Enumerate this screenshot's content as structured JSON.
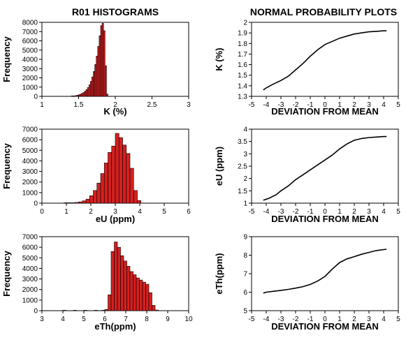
{
  "headers": {
    "left": "R01 HISTOGRAMS",
    "right": "NORMAL PROBABILITY PLOTS"
  },
  "colors": {
    "bar_fill": "#d42020",
    "bar_stroke": "#000000",
    "line": "#000000"
  },
  "chart_data": [
    {
      "id": "hist-k",
      "type": "bar",
      "xlabel": "K (%)",
      "ylabel": "Frequency",
      "xlim": [
        1,
        3
      ],
      "ylim": [
        0,
        8000
      ],
      "xticks": [
        "1",
        "1.5",
        "2",
        "2.5",
        "3"
      ],
      "yticks": [
        "0",
        "1000",
        "2000",
        "3000",
        "4000",
        "5000",
        "6000",
        "7000",
        "8000"
      ],
      "bin_width": 0.02,
      "bins": [
        [
          1.4,
          20
        ],
        [
          1.42,
          40
        ],
        [
          1.44,
          60
        ],
        [
          1.46,
          90
        ],
        [
          1.48,
          130
        ],
        [
          1.5,
          180
        ],
        [
          1.52,
          240
        ],
        [
          1.54,
          320
        ],
        [
          1.56,
          420
        ],
        [
          1.58,
          560
        ],
        [
          1.6,
          730
        ],
        [
          1.62,
          950
        ],
        [
          1.64,
          1250
        ],
        [
          1.66,
          1620
        ],
        [
          1.68,
          2100
        ],
        [
          1.7,
          2700
        ],
        [
          1.72,
          3450
        ],
        [
          1.74,
          4350
        ],
        [
          1.76,
          5400
        ],
        [
          1.78,
          6550
        ],
        [
          1.8,
          7650
        ],
        [
          1.82,
          7900
        ],
        [
          1.84,
          7100
        ],
        [
          1.86,
          3300
        ],
        [
          1.88,
          250
        ]
      ]
    },
    {
      "id": "npp-k",
      "type": "line",
      "xlabel": "DEVIATION FROM MEAN",
      "ylabel": "K (%)",
      "xlim": [
        -5,
        5
      ],
      "ylim": [
        1.3,
        2
      ],
      "xticks": [
        "-5",
        "-4",
        "-3",
        "-2",
        "-1",
        "0",
        "1",
        "2",
        "3",
        "4",
        "5"
      ],
      "yticks": [
        "1.3",
        "1.4",
        "1.5",
        "1.6",
        "1.7",
        "1.8",
        "1.9",
        "2"
      ],
      "points": [
        [
          -4.2,
          1.36
        ],
        [
          -4.0,
          1.38
        ],
        [
          -3.6,
          1.41
        ],
        [
          -3.0,
          1.45
        ],
        [
          -2.5,
          1.49
        ],
        [
          -2.0,
          1.55
        ],
        [
          -1.5,
          1.61
        ],
        [
          -1.0,
          1.68
        ],
        [
          -0.5,
          1.74
        ],
        [
          0.0,
          1.79
        ],
        [
          0.5,
          1.82
        ],
        [
          1.0,
          1.85
        ],
        [
          1.5,
          1.87
        ],
        [
          2.0,
          1.89
        ],
        [
          2.5,
          1.9
        ],
        [
          3.0,
          1.91
        ],
        [
          3.5,
          1.915
        ],
        [
          4.0,
          1.92
        ],
        [
          4.2,
          1.92
        ]
      ]
    },
    {
      "id": "hist-eu",
      "type": "bar",
      "xlabel": "eU (ppm)",
      "ylabel": "Frequency",
      "xlim": [
        0,
        6
      ],
      "ylim": [
        0,
        7000
      ],
      "xticks": [
        "0",
        "1",
        "2",
        "3",
        "4",
        "5",
        "6"
      ],
      "yticks": [
        "0",
        "1000",
        "2000",
        "3000",
        "4000",
        "5000",
        "6000",
        "7000"
      ],
      "bin_width": 0.15,
      "bins": [
        [
          0.9,
          10
        ],
        [
          1.05,
          20
        ],
        [
          1.2,
          40
        ],
        [
          1.35,
          70
        ],
        [
          1.5,
          120
        ],
        [
          1.65,
          220
        ],
        [
          1.8,
          380
        ],
        [
          1.95,
          700
        ],
        [
          2.1,
          1200
        ],
        [
          2.25,
          1900
        ],
        [
          2.4,
          2800
        ],
        [
          2.55,
          3800
        ],
        [
          2.7,
          4800
        ],
        [
          2.85,
          5400
        ],
        [
          3.0,
          6600
        ],
        [
          3.15,
          6200
        ],
        [
          3.3,
          5500
        ],
        [
          3.45,
          4700
        ],
        [
          3.6,
          3300
        ],
        [
          3.75,
          1200
        ],
        [
          3.9,
          250
        ]
      ]
    },
    {
      "id": "npp-eu",
      "type": "line",
      "xlabel": "DEVIATION FROM MEAN",
      "ylabel": "eU (ppm)",
      "xlim": [
        -5,
        5
      ],
      "ylim": [
        1,
        4
      ],
      "xticks": [
        "-5",
        "-4",
        "-3",
        "-2",
        "-1",
        "0",
        "1",
        "2",
        "3",
        "4",
        "5"
      ],
      "yticks": [
        "1",
        "1.5",
        "2",
        "2.5",
        "3",
        "3.5",
        "4"
      ],
      "points": [
        [
          -4.2,
          1.12
        ],
        [
          -3.8,
          1.2
        ],
        [
          -3.3,
          1.35
        ],
        [
          -3.0,
          1.5
        ],
        [
          -2.5,
          1.7
        ],
        [
          -2.0,
          1.95
        ],
        [
          -1.5,
          2.15
        ],
        [
          -1.0,
          2.35
        ],
        [
          -0.5,
          2.55
        ],
        [
          0.0,
          2.75
        ],
        [
          0.5,
          2.95
        ],
        [
          1.0,
          3.2
        ],
        [
          1.5,
          3.4
        ],
        [
          2.0,
          3.55
        ],
        [
          2.5,
          3.62
        ],
        [
          3.0,
          3.66
        ],
        [
          3.5,
          3.68
        ],
        [
          4.0,
          3.7
        ],
        [
          4.2,
          3.7
        ]
      ]
    },
    {
      "id": "hist-eth",
      "type": "bar",
      "xlabel": "eTh(ppm)",
      "ylabel": "Frequency",
      "xlim": [
        3,
        10
      ],
      "ylim": [
        0,
        7000
      ],
      "xticks": [
        "3",
        "4",
        "5",
        "6",
        "7",
        "8",
        "9",
        "10"
      ],
      "yticks": [
        "0",
        "1000",
        "2000",
        "3000",
        "4000",
        "5000",
        "6000",
        "7000"
      ],
      "bin_width": 0.15,
      "bins": [
        [
          4.0,
          10
        ],
        [
          4.5,
          10
        ],
        [
          5.0,
          10
        ],
        [
          5.5,
          20
        ],
        [
          5.85,
          40
        ],
        [
          6.0,
          120
        ],
        [
          6.15,
          1500
        ],
        [
          6.3,
          5600
        ],
        [
          6.45,
          6500
        ],
        [
          6.6,
          6000
        ],
        [
          6.75,
          5200
        ],
        [
          6.9,
          4700
        ],
        [
          7.05,
          4200
        ],
        [
          7.2,
          3700
        ],
        [
          7.35,
          3400
        ],
        [
          7.5,
          3100
        ],
        [
          7.65,
          2900
        ],
        [
          7.8,
          2700
        ],
        [
          7.95,
          2500
        ],
        [
          8.1,
          1700
        ],
        [
          8.25,
          500
        ],
        [
          8.4,
          60
        ]
      ]
    },
    {
      "id": "npp-eth",
      "type": "line",
      "xlabel": "DEVIATION FROM MEAN",
      "ylabel": "eTh(ppm)",
      "xlim": [
        -5,
        5
      ],
      "ylim": [
        5,
        9
      ],
      "xticks": [
        "-5",
        "-4",
        "-3",
        "-2",
        "-1",
        "0",
        "1",
        "2",
        "3",
        "4",
        "5"
      ],
      "yticks": [
        "5",
        "6",
        "7",
        "8",
        "9"
      ],
      "points": [
        [
          -4.2,
          5.95
        ],
        [
          -4.0,
          6.0
        ],
        [
          -3.5,
          6.05
        ],
        [
          -3.0,
          6.1
        ],
        [
          -2.5,
          6.15
        ],
        [
          -2.0,
          6.22
        ],
        [
          -1.5,
          6.3
        ],
        [
          -1.0,
          6.42
        ],
        [
          -0.5,
          6.6
        ],
        [
          0.0,
          6.85
        ],
        [
          0.5,
          7.25
        ],
        [
          1.0,
          7.6
        ],
        [
          1.5,
          7.8
        ],
        [
          2.0,
          7.92
        ],
        [
          2.5,
          8.05
        ],
        [
          3.0,
          8.15
        ],
        [
          3.5,
          8.25
        ],
        [
          4.0,
          8.3
        ],
        [
          4.2,
          8.32
        ]
      ]
    }
  ]
}
